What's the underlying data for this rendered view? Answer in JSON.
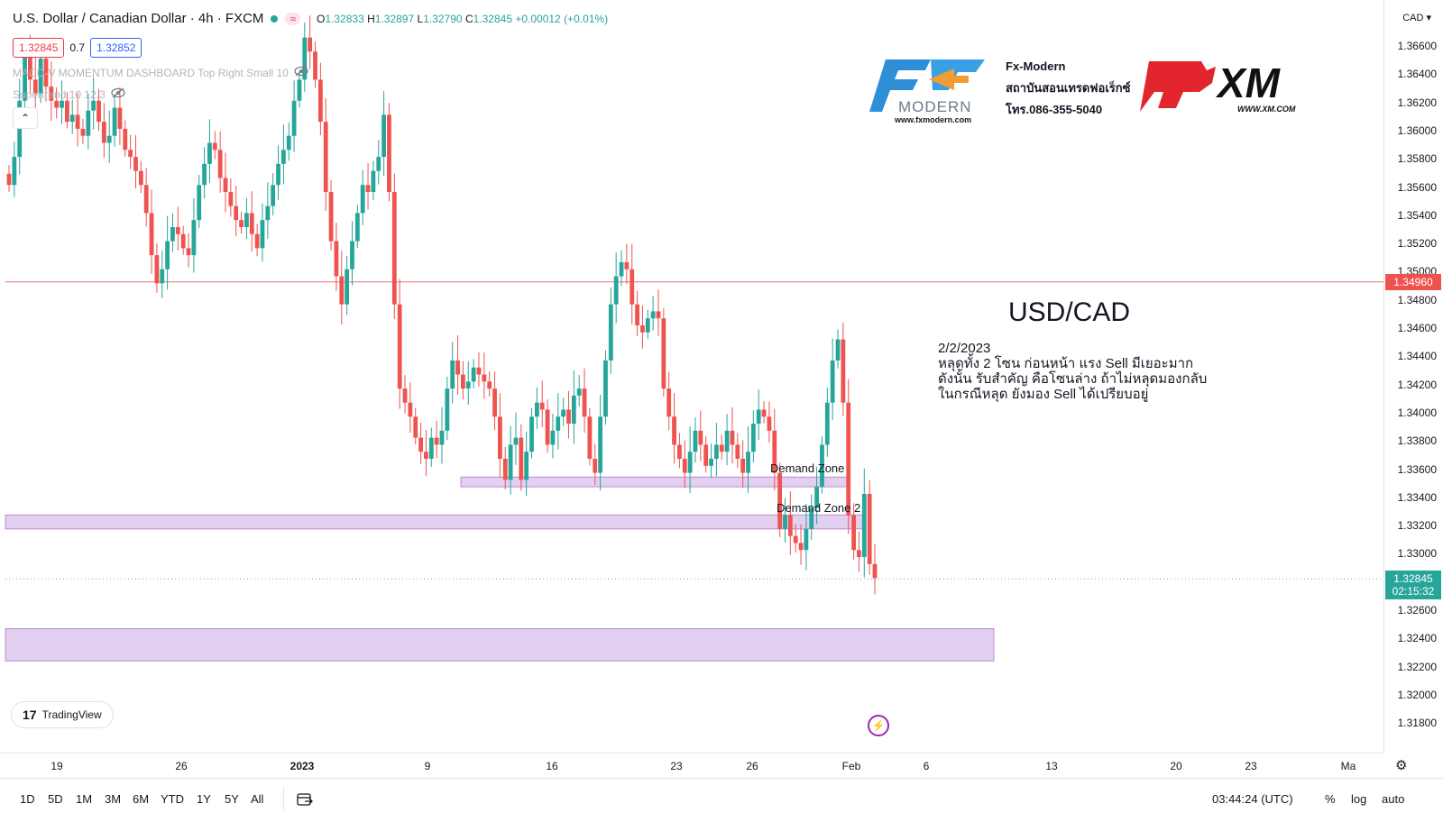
{
  "header": {
    "symbol_title": "U.S. Dollar / Canadian Dollar · 4h · FXCM",
    "badge": "≈",
    "ohlc": {
      "o_label": "O",
      "o": "1.32833",
      "h_label": "H",
      "h": "1.32897",
      "l_label": "L",
      "l": "1.32790",
      "c_label": "C",
      "c": "1.32845",
      "change": "+0.00012 (+0.01%)"
    }
  },
  "quote": {
    "sell": "1.32845",
    "spread": "0.7",
    "buy": "1.32852"
  },
  "indicators": [
    {
      "name": "MACD-V MOMENTUM DASHBOARD Top Right Small 10"
    },
    {
      "name": "Supertrend 10 12.3"
    }
  ],
  "collapse_icon": "chevron-up-icon",
  "price_scale": {
    "currency": "CAD ▾",
    "ticks": [
      "1.36600",
      "1.36400",
      "1.36200",
      "1.36000",
      "1.35800",
      "1.35600",
      "1.35400",
      "1.35200",
      "1.35000",
      "1.34800",
      "1.34600",
      "1.34400",
      "1.34200",
      "1.34000",
      "1.33800",
      "1.33600",
      "1.33400",
      "1.33200",
      "1.33000",
      "1.32800",
      "1.32600",
      "1.32400",
      "1.32200",
      "1.32000",
      "1.31800"
    ],
    "hline_label": "1.34960",
    "last_price_label": "1.32845",
    "countdown": "02:15:32"
  },
  "time_axis": {
    "ticks": [
      {
        "label": "19",
        "bold": false
      },
      {
        "label": "26",
        "bold": false
      },
      {
        "label": "2023",
        "bold": true
      },
      {
        "label": "9",
        "bold": false
      },
      {
        "label": "16",
        "bold": false
      },
      {
        "label": "23",
        "bold": false
      },
      {
        "label": "26",
        "bold": false
      },
      {
        "label": "Feb",
        "bold": false
      },
      {
        "label": "6",
        "bold": false
      },
      {
        "label": "13",
        "bold": false
      },
      {
        "label": "20",
        "bold": false
      },
      {
        "label": "23",
        "bold": false
      },
      {
        "label": "Ma",
        "bold": false
      }
    ]
  },
  "bottom_toolbar": {
    "ranges": [
      "1D",
      "5D",
      "1M",
      "3M",
      "6M",
      "YTD",
      "1Y",
      "5Y",
      "All"
    ],
    "clock": "03:44:24 (UTC)",
    "percent": "%",
    "log": "log",
    "auto": "auto"
  },
  "branding": {
    "tradingview": "TradingView",
    "fxmodern_url": "www.fxmodern.com",
    "fxmodern_word": "MODERN",
    "fxmodern_lines": [
      "Fx-Modern",
      "สถาบันสอนเทรดฟอเร็กซ์",
      "โทร.086-355-5040"
    ],
    "xm_word": "XM",
    "xm_url": "WWW.XM.COM"
  },
  "annotations": {
    "heading": "USD/CAD",
    "date": "2/2/2023",
    "lines": [
      "หลุดทั้ง 2 โซน ก่อนหน้า แรง Sell มีเยอะมาก",
      "ดังนั้น รับสำคัญ คือโซนล่าง ถ้าไม่หลุดมองกลับ",
      "ในกรณีหลุด ยังมอง Sell ได้เปรียบอยู่"
    ],
    "zone1": "Demand Zone",
    "zone2": "Demand Zone 2"
  },
  "colors": {
    "up": "#26a69a",
    "down": "#ef5350",
    "zone_fill": "#e1d0f0",
    "zone_border": "#9c27b0",
    "hline": "#e57373",
    "last_price": "#26a69a"
  },
  "chart_data": {
    "type": "candlestick",
    "symbol": "USD/CAD",
    "timeframe": "4h",
    "y_range": [
      1.318,
      1.367
    ],
    "horizontal_line": 1.3496,
    "last_close": 1.32845,
    "zones": [
      {
        "name": "Demand Zone",
        "top": 1.3357,
        "bottom": 1.335
      },
      {
        "name": "Demand Zone 2",
        "top": 1.333,
        "bottom": 1.332
      },
      {
        "name": "",
        "top": 1.3249,
        "bottom": 1.3226
      }
    ],
    "closes": [
      1.3565,
      1.3585,
      1.3625,
      1.366,
      1.364,
      1.363,
      1.3655,
      1.3635,
      1.3625,
      1.362,
      1.3625,
      1.361,
      1.3615,
      1.3605,
      1.36,
      1.3618,
      1.3625,
      1.361,
      1.3595,
      1.36,
      1.362,
      1.3605,
      1.359,
      1.3585,
      1.3575,
      1.3565,
      1.3545,
      1.3515,
      1.3495,
      1.3505,
      1.3525,
      1.3535,
      1.353,
      1.352,
      1.3515,
      1.354,
      1.3565,
      1.358,
      1.3595,
      1.359,
      1.357,
      1.356,
      1.355,
      1.354,
      1.3535,
      1.3545,
      1.353,
      1.352,
      1.354,
      1.355,
      1.3565,
      1.358,
      1.359,
      1.36,
      1.3625,
      1.364,
      1.367,
      1.366,
      1.364,
      1.361,
      1.356,
      1.3525,
      1.35,
      1.348,
      1.3505,
      1.3525,
      1.3545,
      1.3565,
      1.356,
      1.3575,
      1.3585,
      1.3615,
      1.356,
      1.348,
      1.342,
      1.341,
      1.34,
      1.3385,
      1.3375,
      1.337,
      1.3385,
      1.338,
      1.339,
      1.342,
      1.344,
      1.343,
      1.342,
      1.3425,
      1.3435,
      1.343,
      1.3425,
      1.342,
      1.34,
      1.337,
      1.3355,
      1.338,
      1.3385,
      1.3355,
      1.3375,
      1.34,
      1.341,
      1.3405,
      1.338,
      1.339,
      1.34,
      1.3405,
      1.3395,
      1.3415,
      1.342,
      1.34,
      1.337,
      1.336,
      1.34,
      1.344,
      1.348,
      1.35,
      1.351,
      1.3505,
      1.348,
      1.3465,
      1.346,
      1.347,
      1.3475,
      1.347,
      1.342,
      1.34,
      1.338,
      1.337,
      1.336,
      1.3375,
      1.339,
      1.338,
      1.3365,
      1.337,
      1.338,
      1.3375,
      1.339,
      1.338,
      1.337,
      1.336,
      1.3375,
      1.3395,
      1.3405,
      1.34,
      1.339,
      1.336,
      1.332,
      1.333,
      1.3315,
      1.331,
      1.3305,
      1.332,
      1.3335,
      1.335,
      1.338,
      1.341,
      1.344,
      1.3455,
      1.341,
      1.333,
      1.3305,
      1.33,
      1.3345,
      1.3295,
      1.3285
    ]
  }
}
